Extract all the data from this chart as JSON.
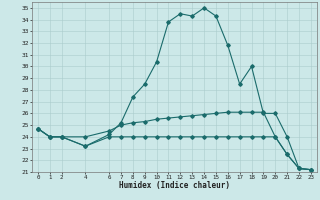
{
  "title": "",
  "xlabel": "Humidex (Indice chaleur)",
  "ylabel": "",
  "bg_color": "#cce8e8",
  "grid_color": "#aacccc",
  "line_color": "#1a6b6b",
  "ylim": [
    21,
    35.5
  ],
  "xlim": [
    -0.5,
    23.5
  ],
  "yticks": [
    21,
    22,
    23,
    24,
    25,
    26,
    27,
    28,
    29,
    30,
    31,
    32,
    33,
    34,
    35
  ],
  "xticks": [
    0,
    1,
    2,
    4,
    6,
    7,
    8,
    9,
    10,
    11,
    12,
    13,
    14,
    15,
    16,
    17,
    18,
    19,
    20,
    21,
    22,
    23
  ],
  "series": [
    {
      "x": [
        0,
        1,
        2,
        4,
        6,
        7,
        8,
        9,
        10,
        11,
        12,
        13,
        14,
        15,
        16,
        17,
        18,
        19,
        20,
        21,
        22,
        23
      ],
      "y": [
        24.7,
        24.0,
        24.0,
        23.2,
        24.2,
        25.2,
        27.4,
        28.5,
        30.4,
        33.8,
        34.5,
        34.3,
        35.0,
        34.3,
        31.8,
        28.5,
        30.0,
        26.0,
        26.0,
        24.0,
        21.3,
        21.2
      ]
    },
    {
      "x": [
        0,
        1,
        2,
        4,
        6,
        7,
        8,
        9,
        10,
        11,
        12,
        13,
        14,
        15,
        16,
        17,
        18,
        19,
        20,
        21,
        22,
        23
      ],
      "y": [
        24.7,
        24.0,
        24.0,
        24.0,
        24.5,
        25.0,
        25.2,
        25.3,
        25.5,
        25.6,
        25.7,
        25.8,
        25.9,
        26.0,
        26.1,
        26.1,
        26.1,
        26.1,
        24.0,
        22.5,
        21.3,
        21.2
      ]
    },
    {
      "x": [
        0,
        1,
        2,
        4,
        6,
        7,
        8,
        9,
        10,
        11,
        12,
        13,
        14,
        15,
        16,
        17,
        18,
        19,
        20,
        21,
        22,
        23
      ],
      "y": [
        24.7,
        24.0,
        24.0,
        23.2,
        24.0,
        24.0,
        24.0,
        24.0,
        24.0,
        24.0,
        24.0,
        24.0,
        24.0,
        24.0,
        24.0,
        24.0,
        24.0,
        24.0,
        24.0,
        22.5,
        21.3,
        21.2
      ]
    }
  ]
}
